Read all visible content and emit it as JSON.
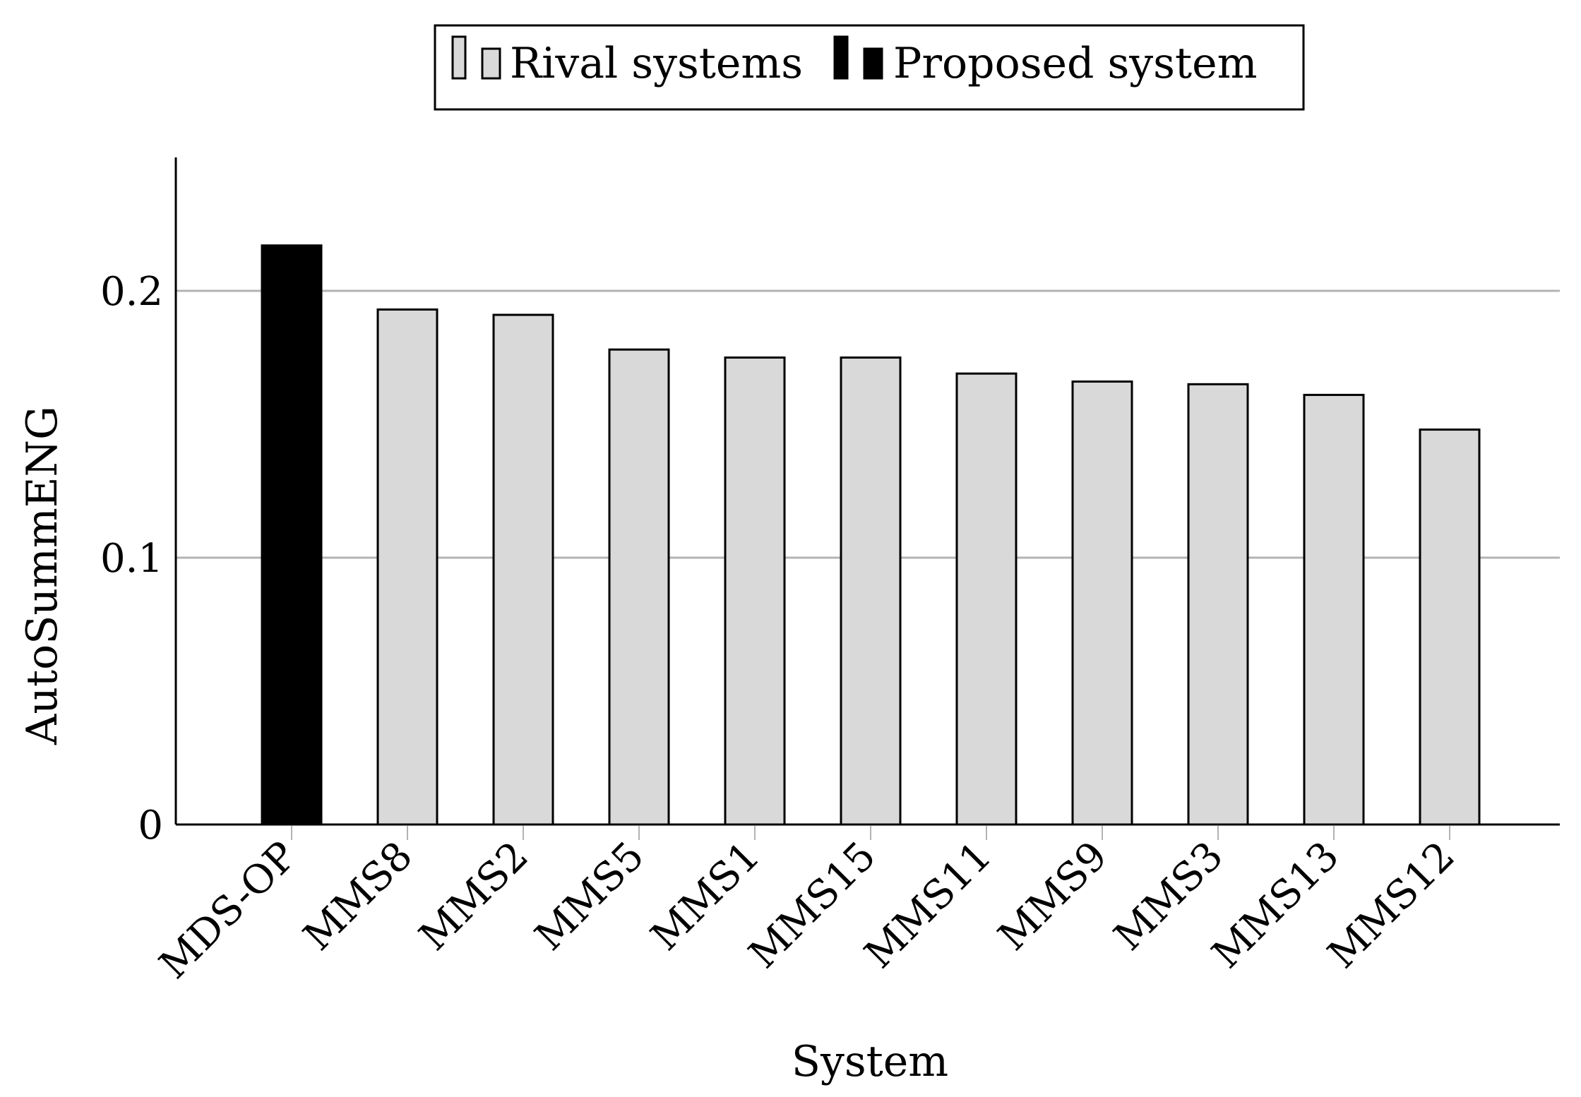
{
  "chart_data": {
    "type": "bar",
    "xlabel": "System",
    "ylabel": "AutoSummENG",
    "ylim": [
      0,
      0.25
    ],
    "yticks": [
      0,
      0.1,
      0.2
    ],
    "ytick_labels": [
      "0",
      "0.1",
      "0.2"
    ],
    "grid": "horizontal",
    "legend_position": "top-center",
    "legend": [
      {
        "name": "Rival systems",
        "color": "#d9d9d9"
      },
      {
        "name": "Proposed system",
        "color": "#000000"
      }
    ],
    "categories": [
      "MDS-OP",
      "MMS8",
      "MMS2",
      "MMS5",
      "MMS1",
      "MMS15",
      "MMS11",
      "MMS9",
      "MMS3",
      "MMS13",
      "MMS12"
    ],
    "values": [
      0.217,
      0.193,
      0.191,
      0.178,
      0.175,
      0.175,
      0.169,
      0.166,
      0.165,
      0.161,
      0.148
    ],
    "groups": [
      "Proposed system",
      "Rival systems",
      "Rival systems",
      "Rival systems",
      "Rival systems",
      "Rival systems",
      "Rival systems",
      "Rival systems",
      "Rival systems",
      "Rival systems",
      "Rival systems"
    ]
  }
}
